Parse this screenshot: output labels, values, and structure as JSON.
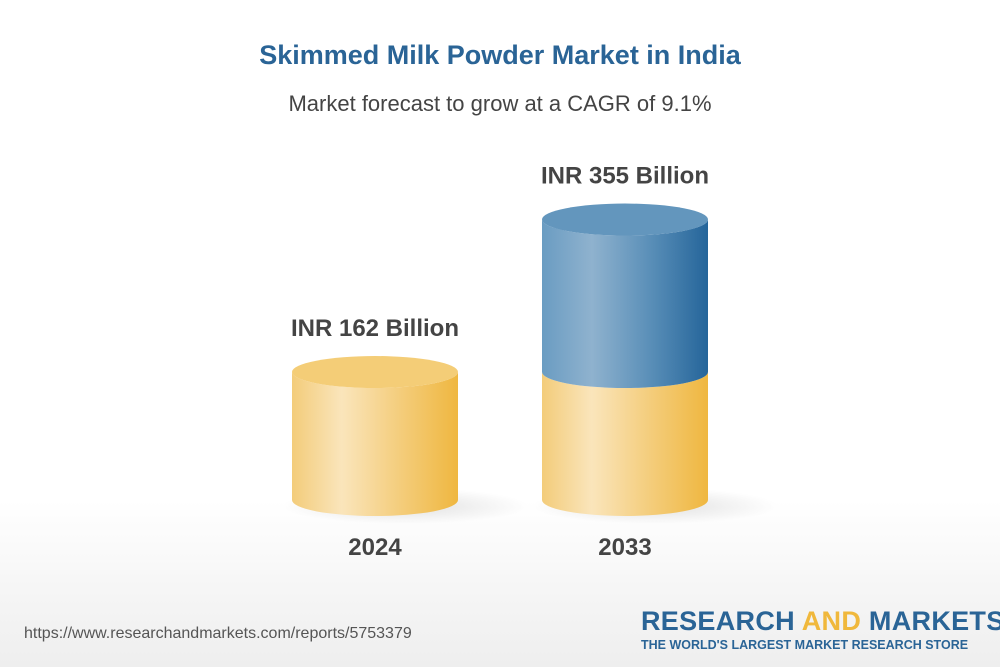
{
  "chart_data": {
    "type": "bar",
    "style": "3d-cylinder",
    "title": "Skimmed Milk Powder Market in India",
    "subtitle": "Market forecast to grow at a CAGR of 9.1%",
    "categories": [
      "2024",
      "2033"
    ],
    "values": [
      162,
      355
    ],
    "unit": "INR Billion",
    "data_labels": [
      "INR 162 Billion",
      "INR 355 Billion"
    ],
    "grid": false,
    "colors": {
      "base": "#f2c25a",
      "growth": "#2a6a9e",
      "title": "#2a6496"
    }
  },
  "footer": {
    "url": "https://www.researchandmarkets.com/reports/5753379",
    "logo_word1": "RESEARCH ",
    "logo_word2": "AND",
    "logo_word3": " MARKETS",
    "logo_tagline": "THE WORLD'S LARGEST MARKET RESEARCH STORE"
  }
}
